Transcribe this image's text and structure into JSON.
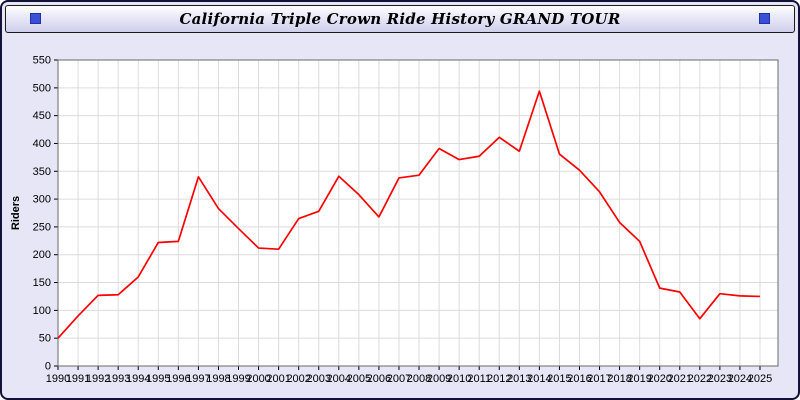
{
  "header": {
    "title": "California Triple Crown Ride History GRAND TOUR",
    "accent_square_color": "#3a4ed8"
  },
  "chart_data": {
    "type": "line",
    "title": "California Triple Crown Ride History GRAND TOUR",
    "xlabel": "",
    "ylabel": "Riders",
    "ylim": [
      0,
      550
    ],
    "ytick_step": 50,
    "grid": true,
    "grid_color": "#dcdcdc",
    "plot_border_color": "#6a6a6a",
    "line_color": "#ff0000",
    "legend_position": "none",
    "categories": [
      "1990",
      "1991",
      "1992",
      "1993",
      "1994",
      "1995",
      "1996",
      "1997",
      "1998",
      "1999",
      "2000",
      "2001",
      "2002",
      "2003",
      "2004",
      "2005",
      "2006",
      "2007",
      "2008",
      "2009",
      "2010",
      "2011",
      "2012",
      "2013",
      "2014",
      "2015",
      "2016",
      "2017",
      "2018",
      "2019",
      "2020",
      "2021",
      "2022",
      "2023",
      "2024",
      "2025"
    ],
    "series": [
      {
        "name": "Riders",
        "values": [
          50,
          90,
          127,
          128,
          160,
          222,
          224,
          340,
          283,
          247,
          212,
          210,
          265,
          278,
          341,
          308,
          268,
          338,
          343,
          391,
          371,
          377,
          411,
          386,
          494,
          381,
          352,
          313,
          258,
          224,
          140,
          133,
          85,
          130,
          126,
          125
        ]
      }
    ]
  }
}
